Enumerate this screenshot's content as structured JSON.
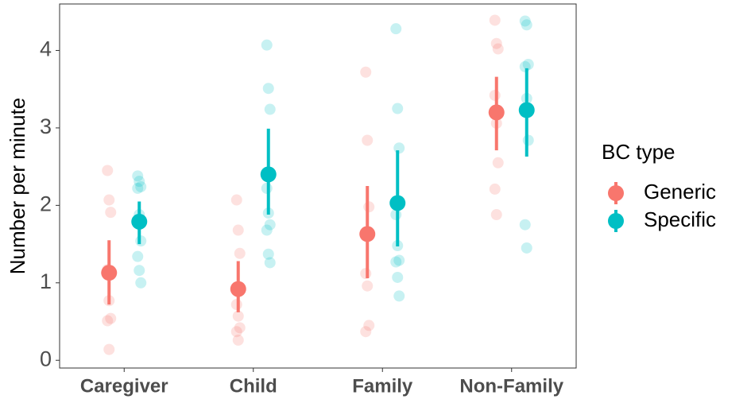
{
  "chart_data": {
    "type": "pointrange",
    "y_label": "Number per minute",
    "categories": [
      "Caregiver",
      "Child",
      "Family",
      "Non-Family"
    ],
    "ylim": [
      -0.1,
      4.6
    ],
    "yticks": [
      0,
      1,
      2,
      3,
      4
    ],
    "legend_title": "BC type",
    "legend_position": "right",
    "series": [
      {
        "name": "Generic",
        "color": "#F8766D",
        "values": [
          1.13,
          0.92,
          1.63,
          3.2
        ],
        "lower": [
          0.72,
          0.62,
          1.06,
          2.71
        ],
        "upper": [
          1.55,
          1.28,
          2.25,
          3.66
        ],
        "points": [
          [
            2.45,
            2.07,
            1.91,
            1.17,
            0.77,
            0.54,
            0.51,
            0.14
          ],
          [
            2.07,
            1.68,
            1.38,
            0.72,
            0.57,
            0.42,
            0.37,
            0.26
          ],
          [
            3.72,
            2.84,
            1.98,
            1.12,
            0.96,
            0.45,
            0.37
          ],
          [
            4.39,
            4.09,
            4.02,
            3.42,
            3.06,
            2.55,
            2.21,
            1.88
          ]
        ]
      },
      {
        "name": "Specific",
        "color": "#00BFC4",
        "values": [
          1.79,
          2.4,
          2.03,
          3.23
        ],
        "lower": [
          1.5,
          1.88,
          1.47,
          2.63
        ],
        "upper": [
          2.05,
          2.99,
          2.71,
          3.77
        ],
        "points": [
          [
            2.38,
            2.31,
            2.24,
            2.22,
            1.88,
            1.54,
            1.34,
            1.16,
            1.0
          ],
          [
            4.07,
            3.51,
            3.24,
            2.22,
            1.9,
            1.75,
            1.68,
            1.37,
            1.26
          ],
          [
            4.28,
            3.25,
            2.74,
            1.88,
            1.48,
            1.29,
            1.27,
            1.07,
            0.83
          ],
          [
            4.38,
            4.33,
            3.82,
            3.79,
            3.38,
            2.84,
            1.75,
            1.45
          ]
        ]
      }
    ]
  }
}
